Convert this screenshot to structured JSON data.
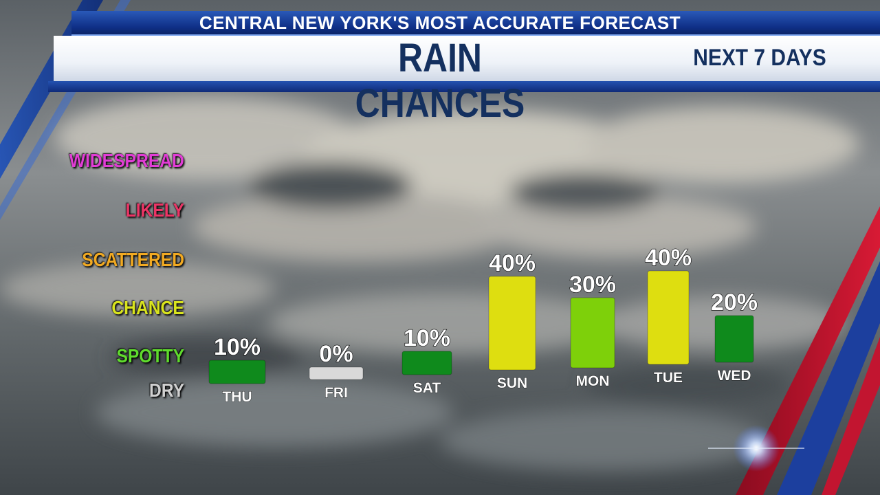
{
  "header": {
    "tagline": "CENTRAL NEW YORK'S MOST ACCURATE FORECAST",
    "title": "RAIN CHANCES",
    "subtitle": "NEXT 7 DAYS"
  },
  "colors": {
    "navy": "#14305f",
    "blue": "#1a45a8",
    "red": "#c8102e",
    "dry": "#d9d9d9",
    "spotty": "#0f8a1c",
    "chance": "#7ed00a",
    "scattered": "#dede10"
  },
  "categories": {
    "widespread": {
      "label": "WIDESPREAD",
      "color": "#e23dd6"
    },
    "likely": {
      "label": "LIKELY",
      "color": "#ec3566"
    },
    "scattered": {
      "label": "SCATTERED",
      "color": "#f2aa22"
    },
    "chance": {
      "label": "CHANCE",
      "color": "#d9e41e"
    },
    "spotty": {
      "label": "SPOTTY",
      "color": "#5fdb2d"
    },
    "dry": {
      "label": "DRY",
      "color": "#d0d0d0"
    }
  },
  "chart_data": {
    "type": "bar",
    "categories": [
      "THU",
      "FRI",
      "SAT",
      "SUN",
      "MON",
      "TUE",
      "WED"
    ],
    "values": [
      10,
      0,
      10,
      40,
      30,
      40,
      20
    ],
    "labels": [
      "10%",
      "0%",
      "10%",
      "40%",
      "30%",
      "40%",
      "20%"
    ],
    "bar_colors": [
      "#0f8a1c",
      "#d9d9d9",
      "#0f8a1c",
      "#dede10",
      "#7ed00a",
      "#dede10",
      "#0f8a1c"
    ],
    "ylabel": "",
    "ylim": [
      0,
      40
    ]
  }
}
